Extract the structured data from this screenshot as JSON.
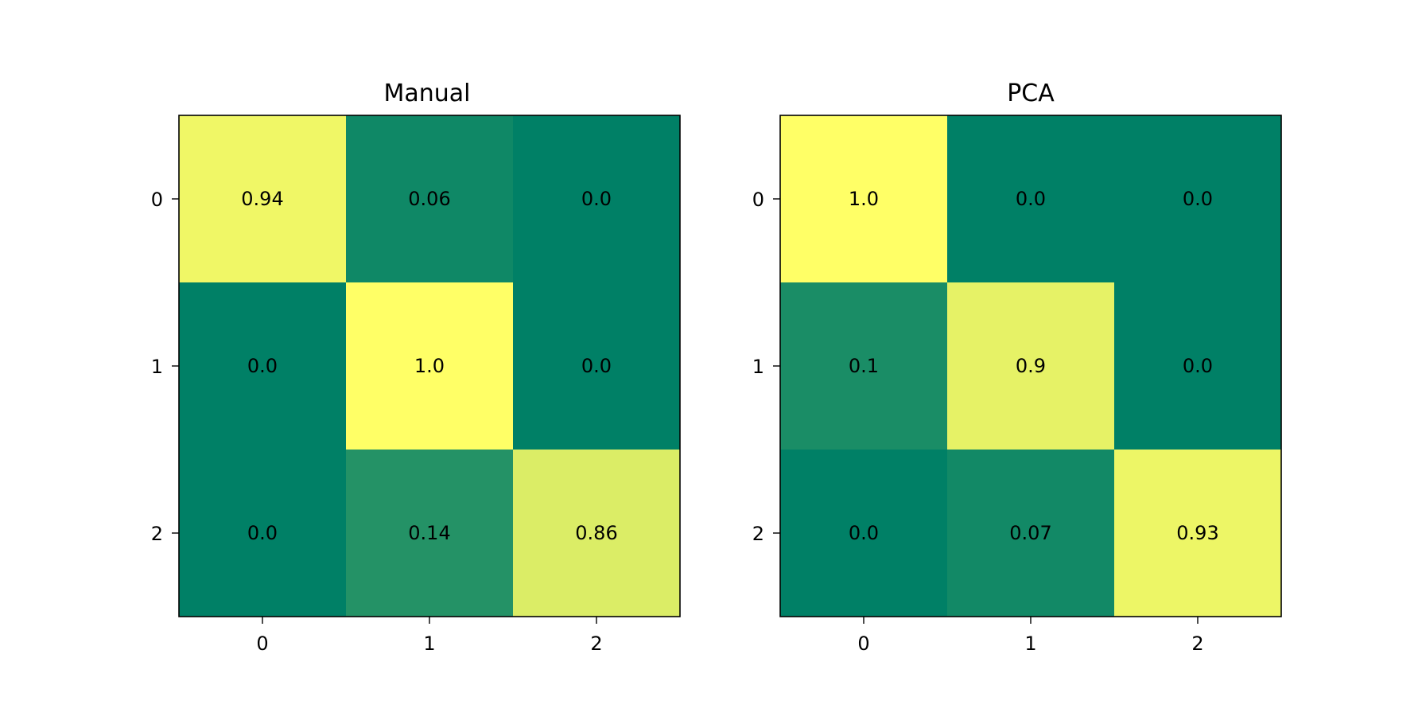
{
  "chart_data": [
    {
      "type": "heatmap",
      "title": "Manual",
      "x_ticks": [
        "0",
        "1",
        "2"
      ],
      "y_ticks": [
        "0",
        "1",
        "2"
      ],
      "values": [
        [
          0.94,
          0.06,
          0.0
        ],
        [
          0.0,
          1.0,
          0.0
        ],
        [
          0.0,
          0.14,
          0.86
        ]
      ],
      "cell_labels": [
        [
          "0.94",
          "0.06",
          "0.0"
        ],
        [
          "0.0",
          "1.0",
          "0.0"
        ],
        [
          "0.0",
          "0.14",
          "0.86"
        ]
      ],
      "colormap": "summer",
      "grid": false
    },
    {
      "type": "heatmap",
      "title": "PCA",
      "x_ticks": [
        "0",
        "1",
        "2"
      ],
      "y_ticks": [
        "0",
        "1",
        "2"
      ],
      "values": [
        [
          1.0,
          0.0,
          0.0
        ],
        [
          0.1,
          0.9,
          0.0
        ],
        [
          0.0,
          0.07,
          0.93
        ]
      ],
      "cell_labels": [
        [
          "1.0",
          "0.0",
          "0.0"
        ],
        [
          "0.1",
          "0.9",
          "0.0"
        ],
        [
          "0.0",
          "0.07",
          "0.93"
        ]
      ],
      "colormap": "summer",
      "grid": false
    }
  ],
  "colors": {
    "colormap_low": "#008066",
    "colormap_high": "#ffff66",
    "text": "#000000",
    "frame": "#000000"
  }
}
